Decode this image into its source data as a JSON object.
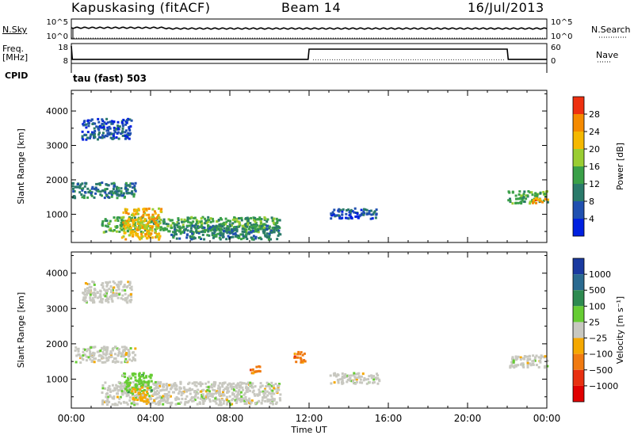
{
  "header": {
    "station": "Kapuskasing (fitACF)",
    "beam": "Beam 14",
    "date": "16/Jul/2013"
  },
  "top_panels": {
    "nsky_label": "N.Sky",
    "nsearch_label": "N.Search",
    "freq_label_1": "Freq.",
    "freq_label_2": "[MHz]",
    "nave_label": "Nave",
    "cpid_label": "CPID",
    "cpid_text": "tau (fast) 503",
    "nsky_ticks": [
      "10^5",
      "10^0"
    ],
    "nsearch_ticks": [
      "10^5",
      "10^0"
    ],
    "freq_ticks": [
      "18",
      "8"
    ],
    "nave_ticks": [
      "60",
      "0"
    ],
    "freq_series": {
      "x_hours": [
        0,
        0.05,
        11.95,
        12.0,
        22.0,
        22.05,
        24
      ],
      "mhz": [
        18,
        10.3,
        10.3,
        16.2,
        16.2,
        10.3,
        10.3
      ]
    },
    "nave_series": {
      "x_hours": [
        0,
        24
      ],
      "value": [
        0,
        0
      ]
    }
  },
  "chart_data": [
    {
      "type": "heatmap",
      "title": "Power",
      "xlabel": "",
      "ylabel": "Slant Range [km]",
      "xlim": [
        0,
        24
      ],
      "ylim": [
        180,
        4600
      ],
      "y_ticks": [
        1000,
        2000,
        3000,
        4000
      ],
      "colorbar_label": "Power [dB]",
      "colorbar_ticks": [
        "4",
        "8",
        "12",
        "16",
        "20",
        "24",
        "28"
      ],
      "colorbar_colors": [
        "#0020e0",
        "#2050b0",
        "#2a7a6a",
        "#3aa048",
        "#9acd32",
        "#f5b800",
        "#f58a00",
        "#ee3010"
      ],
      "regions": [
        {
          "t": [
            0.5,
            3.0
          ],
          "r": [
            3200,
            3800
          ],
          "level": 1
        },
        {
          "t": [
            0.0,
            3.2
          ],
          "r": [
            1500,
            1950
          ],
          "level": 2
        },
        {
          "t": [
            1.5,
            10.5
          ],
          "r": [
            500,
            950
          ],
          "level": 3
        },
        {
          "t": [
            2.5,
            4.5
          ],
          "r": [
            300,
            1200
          ],
          "level": 5
        },
        {
          "t": [
            5.0,
            10.5
          ],
          "r": [
            300,
            700
          ],
          "level": 2
        },
        {
          "t": [
            13.0,
            15.5
          ],
          "r": [
            900,
            1200
          ],
          "level": 1
        },
        {
          "t": [
            22.0,
            24.0
          ],
          "r": [
            1350,
            1700
          ],
          "level": 3
        },
        {
          "t": [
            23.2,
            24.0
          ],
          "r": [
            1350,
            1500
          ],
          "level": 6
        }
      ]
    },
    {
      "type": "heatmap",
      "title": "Velocity",
      "xlabel": "Time UT",
      "ylabel": "Slant Range [km]",
      "xlim": [
        0,
        24
      ],
      "ylim": [
        180,
        4600
      ],
      "x_ticks": [
        "00:00",
        "04:00",
        "08:00",
        "12:00",
        "16:00",
        "20:00",
        "00:00"
      ],
      "y_ticks": [
        1000,
        2000,
        3000,
        4000
      ],
      "colorbar_label": "Velocity [m s⁻¹]",
      "colorbar_ticks": [
        "1000",
        "500",
        "100",
        "25",
        "−25",
        "−100",
        "−500",
        "−1000"
      ],
      "colorbar_colors": [
        "#1a3aa0",
        "#2a6a90",
        "#2d8a50",
        "#66cc33",
        "#c8c8c0",
        "#f5a800",
        "#f07a10",
        "#e83010",
        "#e00000"
      ],
      "regions": [
        {
          "t": [
            0.5,
            3.0
          ],
          "r": [
            3200,
            3800
          ],
          "color": 4
        },
        {
          "t": [
            0.0,
            3.2
          ],
          "r": [
            1500,
            1950
          ],
          "color": 4
        },
        {
          "t": [
            1.5,
            10.5
          ],
          "r": [
            300,
            950
          ],
          "color": 4
        },
        {
          "t": [
            2.5,
            4.0
          ],
          "r": [
            600,
            1200
          ],
          "color": 3
        },
        {
          "t": [
            3.0,
            3.8
          ],
          "r": [
            400,
            800
          ],
          "color": 5
        },
        {
          "t": [
            9.0,
            9.5
          ],
          "r": [
            1200,
            1450
          ],
          "color": 6
        },
        {
          "t": [
            11.2,
            11.8
          ],
          "r": [
            1500,
            1800
          ],
          "color": 6
        },
        {
          "t": [
            13.0,
            15.5
          ],
          "r": [
            900,
            1200
          ],
          "color": 4
        },
        {
          "t": [
            22.0,
            24.0
          ],
          "r": [
            1350,
            1700
          ],
          "color": 4
        }
      ]
    }
  ]
}
